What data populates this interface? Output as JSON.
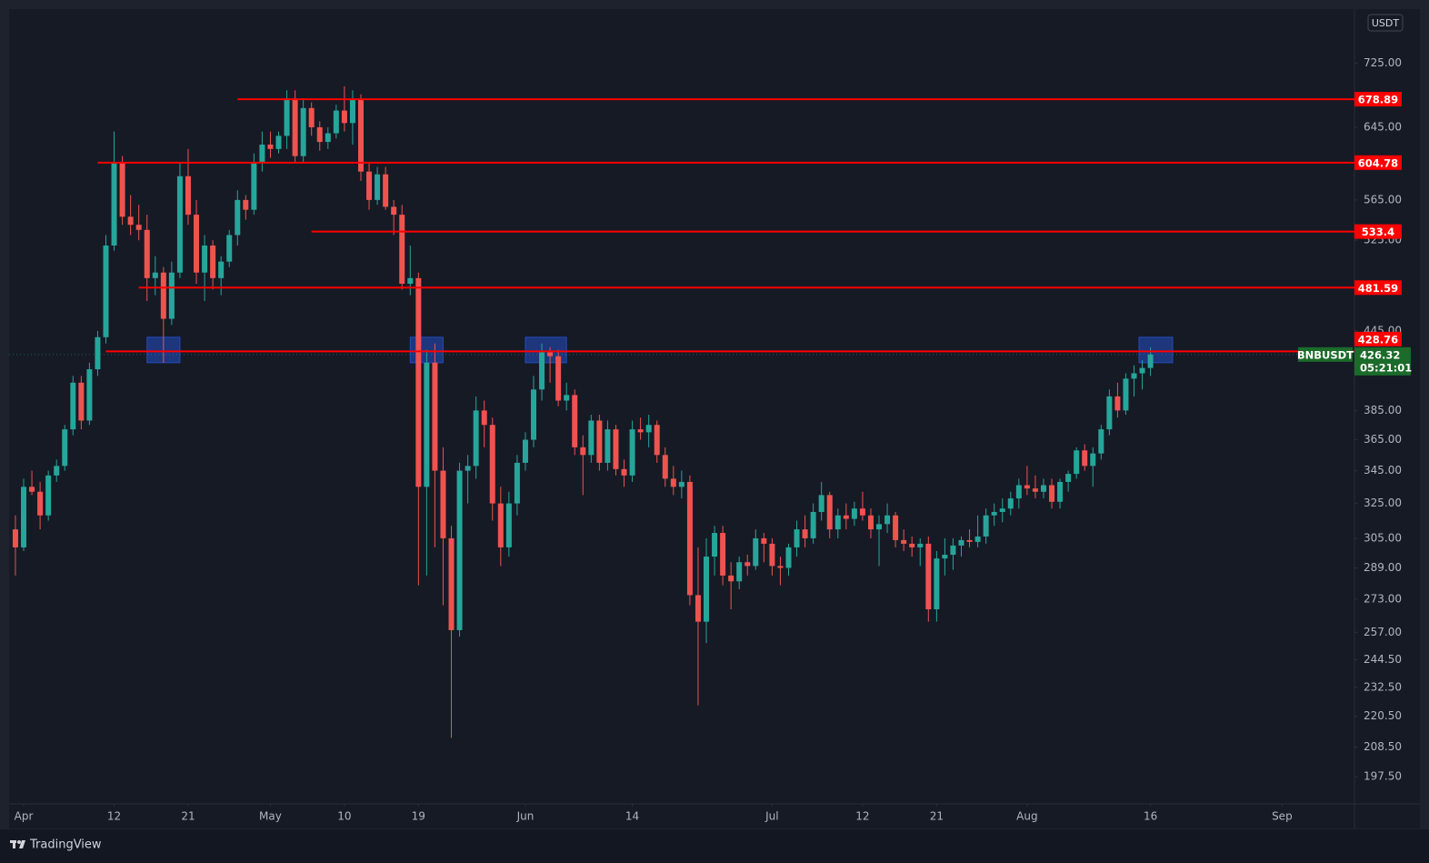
{
  "chart_data": {
    "type": "candlestick",
    "currency": "USDT",
    "log": true,
    "grid": false,
    "up_color": "#26a69a",
    "down_color": "#ef5350",
    "level_color": "#ff0000",
    "zone_color": "#2962ff",
    "last_color": "#1b6b2a",
    "xlim": [
      -1.77,
      161.8
    ],
    "xticks": [
      {
        "value": 0,
        "label": "Apr"
      },
      {
        "value": 11,
        "label": "12"
      },
      {
        "value": 20,
        "label": "21"
      },
      {
        "value": 30,
        "label": "May"
      },
      {
        "value": 39,
        "label": "10"
      },
      {
        "value": 48,
        "label": "19"
      },
      {
        "value": 61,
        "label": "Jun"
      },
      {
        "value": 74,
        "label": "14"
      },
      {
        "value": 91,
        "label": "Jul"
      },
      {
        "value": 102,
        "label": "12"
      },
      {
        "value": 111,
        "label": "21"
      },
      {
        "value": 122,
        "label": "Aug"
      },
      {
        "value": 137,
        "label": "16"
      },
      {
        "value": 153,
        "label": "Sep"
      }
    ],
    "ylim": [
      188.3,
      800
    ],
    "yticks": [
      {
        "value": 725,
        "label": "725.00"
      },
      {
        "value": 645,
        "label": "645.00"
      },
      {
        "value": 565,
        "label": "565.00"
      },
      {
        "value": 525,
        "label": "525.00"
      },
      {
        "value": 445,
        "label": "445.00"
      },
      {
        "value": 385,
        "label": "385.00"
      },
      {
        "value": 365,
        "label": "365.00"
      },
      {
        "value": 345,
        "label": "345.00"
      },
      {
        "value": 325,
        "label": "325.00"
      },
      {
        "value": 305,
        "label": "305.00"
      },
      {
        "value": 289,
        "label": "289.00"
      },
      {
        "value": 273,
        "label": "273.00"
      },
      {
        "value": 257,
        "label": "257.00"
      },
      {
        "value": 244.5,
        "label": "244.50"
      },
      {
        "value": 232.5,
        "label": "232.50"
      },
      {
        "value": 220.5,
        "label": "220.50"
      },
      {
        "value": 208.5,
        "label": "208.50"
      },
      {
        "value": 197.5,
        "label": "197.50"
      }
    ],
    "x": [
      -1,
      0,
      1,
      2,
      3,
      4,
      5,
      6,
      7,
      8,
      9,
      10,
      11,
      12,
      13,
      14,
      15,
      16,
      17,
      18,
      19,
      20,
      21,
      22,
      23,
      24,
      25,
      26,
      27,
      28,
      29,
      30,
      31,
      32,
      33,
      34,
      35,
      36,
      37,
      38,
      39,
      40,
      41,
      42,
      43,
      44,
      45,
      46,
      47,
      48,
      49,
      50,
      51,
      52,
      53,
      54,
      55,
      56,
      57,
      58,
      59,
      60,
      61,
      62,
      63,
      64,
      65,
      66,
      67,
      68,
      69,
      70,
      71,
      72,
      73,
      74,
      75,
      76,
      77,
      78,
      79,
      80,
      81,
      82,
      83,
      84,
      85,
      86,
      87,
      88,
      89,
      90,
      91,
      92,
      93,
      94,
      95,
      96,
      97,
      98,
      99,
      100,
      101,
      102,
      103,
      104,
      105,
      106,
      107,
      108,
      109,
      110,
      111,
      112,
      113,
      114,
      115,
      116,
      117,
      118,
      119,
      120,
      121,
      122,
      123,
      124,
      125,
      126,
      127,
      128,
      129,
      130,
      131,
      132,
      133,
      134,
      135,
      136,
      137
    ],
    "open": [
      310,
      300,
      335,
      332,
      318,
      342,
      348,
      372,
      405,
      378,
      415,
      440,
      520,
      605,
      548,
      540,
      535,
      490,
      495,
      455,
      495,
      590,
      550,
      495,
      520,
      490,
      505,
      530,
      565,
      555,
      605,
      625,
      620,
      635,
      680,
      612,
      668,
      645,
      628,
      638,
      665,
      650,
      678,
      595,
      565,
      592,
      558,
      550,
      485,
      490,
      335,
      420,
      345,
      305,
      258,
      345,
      348,
      385,
      375,
      325,
      300,
      325,
      350,
      365,
      400,
      428,
      425,
      392,
      396,
      360,
      355,
      378,
      350,
      372,
      346,
      342,
      372,
      370,
      375,
      355,
      340,
      335,
      338,
      275,
      262,
      295,
      308,
      285,
      282,
      292,
      290,
      305,
      302,
      290,
      289,
      300,
      310,
      305,
      320,
      330,
      310,
      318,
      316,
      322,
      318,
      310,
      313,
      318,
      304,
      302,
      300,
      302,
      268,
      294,
      296,
      301,
      304,
      303,
      306,
      318,
      320,
      322,
      328,
      336,
      334,
      332,
      336,
      326,
      338,
      343,
      358,
      348,
      356,
      372,
      395,
      385,
      408,
      412,
      416
    ],
    "high": [
      318,
      340,
      345,
      338,
      345,
      352,
      375,
      410,
      410,
      420,
      445,
      530,
      640,
      612,
      570,
      560,
      550,
      510,
      500,
      505,
      605,
      620,
      565,
      530,
      525,
      510,
      535,
      575,
      570,
      615,
      640,
      640,
      640,
      690,
      690,
      680,
      675,
      652,
      645,
      672,
      695,
      690,
      685,
      605,
      600,
      600,
      565,
      560,
      520,
      495,
      430,
      435,
      360,
      312,
      350,
      355,
      395,
      392,
      380,
      335,
      332,
      355,
      370,
      410,
      435,
      432,
      430,
      405,
      400,
      368,
      382,
      382,
      378,
      375,
      352,
      378,
      380,
      382,
      378,
      360,
      348,
      345,
      342,
      300,
      305,
      312,
      312,
      292,
      295,
      296,
      310,
      308,
      305,
      295,
      302,
      315,
      318,
      325,
      338,
      332,
      322,
      325,
      326,
      332,
      322,
      318,
      325,
      320,
      310,
      306,
      305,
      306,
      298,
      305,
      305,
      306,
      310,
      318,
      322,
      325,
      328,
      332,
      340,
      348,
      342,
      340,
      340,
      340,
      345,
      360,
      362,
      360,
      375,
      400,
      405,
      412,
      418,
      422,
      432
    ],
    "low": [
      285,
      298,
      330,
      310,
      315,
      338,
      345,
      368,
      372,
      375,
      410,
      435,
      515,
      540,
      530,
      525,
      470,
      475,
      420,
      450,
      490,
      540,
      485,
      470,
      480,
      475,
      500,
      520,
      545,
      550,
      595,
      610,
      615,
      620,
      605,
      605,
      635,
      618,
      620,
      632,
      640,
      625,
      585,
      555,
      560,
      555,
      530,
      480,
      475,
      280,
      285,
      300,
      270,
      212,
      255,
      325,
      340,
      360,
      315,
      290,
      295,
      318,
      345,
      360,
      392,
      405,
      388,
      385,
      355,
      330,
      350,
      345,
      345,
      342,
      335,
      338,
      365,
      360,
      350,
      335,
      330,
      328,
      270,
      225,
      252,
      285,
      280,
      268,
      278,
      285,
      288,
      292,
      285,
      280,
      285,
      295,
      300,
      302,
      315,
      305,
      305,
      310,
      312,
      315,
      305,
      290,
      308,
      300,
      298,
      295,
      290,
      262,
      262,
      285,
      288,
      295,
      300,
      300,
      302,
      312,
      314,
      318,
      322,
      330,
      328,
      328,
      322,
      322,
      332,
      340,
      345,
      335,
      352,
      368,
      380,
      382,
      395,
      400,
      410
    ],
    "close": [
      300,
      335,
      332,
      318,
      342,
      348,
      372,
      405,
      378,
      415,
      440,
      520,
      605,
      548,
      540,
      535,
      490,
      495,
      455,
      495,
      590,
      550,
      495,
      520,
      490,
      505,
      530,
      565,
      555,
      605,
      625,
      620,
      635,
      680,
      612,
      668,
      645,
      628,
      638,
      665,
      650,
      678,
      595,
      565,
      592,
      558,
      550,
      485,
      490,
      335,
      420,
      345,
      305,
      258,
      345,
      348,
      385,
      375,
      325,
      300,
      325,
      350,
      365,
      400,
      428,
      425,
      392,
      396,
      360,
      355,
      378,
      350,
      372,
      346,
      342,
      372,
      370,
      375,
      355,
      340,
      335,
      338,
      275,
      262,
      295,
      308,
      285,
      282,
      292,
      290,
      305,
      302,
      290,
      289,
      300,
      310,
      305,
      320,
      330,
      310,
      318,
      316,
      322,
      318,
      310,
      313,
      318,
      304,
      302,
      300,
      302,
      268,
      294,
      296,
      301,
      304,
      303,
      306,
      318,
      320,
      322,
      328,
      336,
      334,
      332,
      336,
      326,
      338,
      343,
      358,
      348,
      356,
      372,
      395,
      385,
      408,
      412,
      416,
      426.32
    ],
    "levels": [
      {
        "value": 678.89,
        "start": 26
      },
      {
        "value": 604.78,
        "start": 9
      },
      {
        "value": 533.4,
        "start": 35
      },
      {
        "value": 481.59,
        "start": 14
      },
      {
        "value": 428.76,
        "start": 10
      }
    ],
    "zones": [
      {
        "x": [
          15,
          19
        ],
        "y": [
          420,
          440
        ]
      },
      {
        "x": [
          47,
          51
        ],
        "y": [
          420,
          440
        ]
      },
      {
        "x": [
          61,
          66
        ],
        "y": [
          420,
          440
        ]
      },
      {
        "x": [
          135.6,
          139.7
        ],
        "y": [
          420,
          440
        ]
      }
    ],
    "last": {
      "symbol": "BNBUSDT",
      "price": 426.32,
      "countdown": "05:21:01"
    }
  },
  "brand": "TradingView"
}
